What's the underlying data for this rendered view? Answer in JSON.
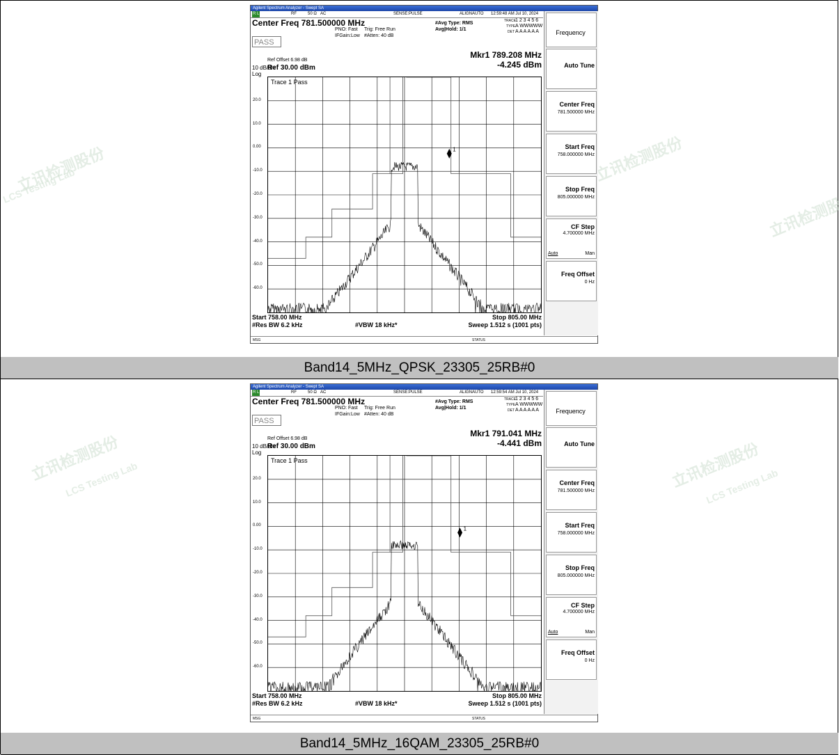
{
  "panels": [
    {
      "caption": "Band14_5MHz_QPSK_23305_25RB#0",
      "app_title": "Agilent Spectrum Analyzer - Swept SA",
      "status": {
        "rl": "R L",
        "rf": "RF",
        "impedance": "50 Ω",
        "coupling": "AC",
        "sense": "SENSE:PULSE",
        "align": "ALIGNAUTO",
        "timestamp": "12:59:48 AM Jul 10, 2024"
      },
      "center_freq": "Center Freq 781.500000 MHz",
      "pno": "PNO: Fast",
      "ifgain": "IFGain:Low",
      "trig": "Trig: Free Run",
      "atten": "#Atten: 40 dB",
      "avg_type": "#Avg Type: RMS",
      "avg_hold": "Avg|Hold: 1/1",
      "trace_label": "TRACE",
      "trace_nums": "1 2 3 4 5 6",
      "type_label": "TYPE",
      "type_vals": "A WWWWW",
      "det_label": "DET",
      "det_vals": "A A A A A A",
      "pass_label": "PASS",
      "ref_offset": "Ref Offset 6.98 dB",
      "scale": "10 dB/div",
      "ref": "Ref 30.00 dBm",
      "log": "Log",
      "trace_pass": "Trace 1 Pass",
      "marker_freq": "Mkr1 789.208 MHz",
      "marker_amp": "-4.245 dBm",
      "marker_num": "1",
      "start": "Start 758.00 MHz",
      "stop": "Stop 805.00 MHz",
      "res_bw": "#Res BW 6.2 kHz",
      "vbw": "#VBW 18 kHz*",
      "sweep": "Sweep  1.512 s (1001 pts)",
      "msg": "MSG",
      "status_text": "STATUS",
      "y_ticks": [
        "20.0",
        "10.0",
        "0.00",
        "-10.0",
        "-20.0",
        "-30.0",
        "-40.0",
        "-50.0",
        "-60.0"
      ],
      "softkeys": {
        "header": "Frequency",
        "auto_tune": "Auto Tune",
        "center_freq": {
          "title": "Center Freq",
          "value": "781.500000 MHz"
        },
        "start_freq": {
          "title": "Start Freq",
          "value": "758.000000 MHz"
        },
        "stop_freq": {
          "title": "Stop Freq",
          "value": "805.000000 MHz"
        },
        "cf_step": {
          "title": "CF Step",
          "value": "4.700000 MHz",
          "left": "Auto",
          "right": "Man"
        },
        "freq_offset": {
          "title": "Freq Offset",
          "value": "0 Hz"
        }
      },
      "marker_dbm": -4.245,
      "marker_mhz": 789.208
    },
    {
      "caption": "Band14_5MHz_16QAM_23305_25RB#0",
      "app_title": "Agilent Spectrum Analyzer - Swept SA",
      "status": {
        "rl": "R L",
        "rf": "RF",
        "impedance": "50 Ω",
        "coupling": "AC",
        "sense": "SENSE:PULSE",
        "align": "ALIGNAUTO",
        "timestamp": "12:59:54 AM Jul 10, 2024"
      },
      "center_freq": "Center Freq 781.500000 MHz",
      "pno": "PNO: Fast",
      "ifgain": "IFGain:Low",
      "trig": "Trig: Free Run",
      "atten": "#Atten: 40 dB",
      "avg_type": "#Avg Type: RMS",
      "avg_hold": "Avg|Hold: 1/1",
      "trace_label": "TRACE",
      "trace_nums": "1 2 3 4 5 6",
      "type_label": "TYPE",
      "type_vals": "A WWWWW",
      "det_label": "DET",
      "det_vals": "A A A A A A",
      "pass_label": "PASS",
      "ref_offset": "Ref Offset 6.98 dB",
      "scale": "10 dB/div",
      "ref": "Ref 30.00 dBm",
      "log": "Log",
      "trace_pass": "Trace 1 Pass",
      "marker_freq": "Mkr1 791.041 MHz",
      "marker_amp": "-4.441 dBm",
      "marker_num": "1",
      "start": "Start 758.00 MHz",
      "stop": "Stop 805.00 MHz",
      "res_bw": "#Res BW 6.2 kHz",
      "vbw": "#VBW 18 kHz*",
      "sweep": "Sweep  1.512 s (1001 pts)",
      "msg": "MSG",
      "status_text": "STATUS",
      "y_ticks": [
        "20.0",
        "10.0",
        "0.00",
        "-10.0",
        "-20.0",
        "-30.0",
        "-40.0",
        "-50.0",
        "-60.0"
      ],
      "softkeys": {
        "header": "Frequency",
        "auto_tune": "Auto Tune",
        "center_freq": {
          "title": "Center Freq",
          "value": "781.500000 MHz"
        },
        "start_freq": {
          "title": "Start Freq",
          "value": "758.000000 MHz"
        },
        "stop_freq": {
          "title": "Stop Freq",
          "value": "805.000000 MHz"
        },
        "cf_step": {
          "title": "CF Step",
          "value": "4.700000 MHz",
          "left": "Auto",
          "right": "Man"
        },
        "freq_offset": {
          "title": "Freq Offset",
          "value": "0 Hz"
        }
      },
      "marker_dbm": -4.441,
      "marker_mhz": 791.041
    }
  ],
  "watermarks": [
    "立讯检测股份",
    "LCS Testing Lab"
  ],
  "colors": {
    "caption_bg": "#c0c0c0",
    "titlebar": "#1d46a8",
    "trace": "#000000"
  }
}
